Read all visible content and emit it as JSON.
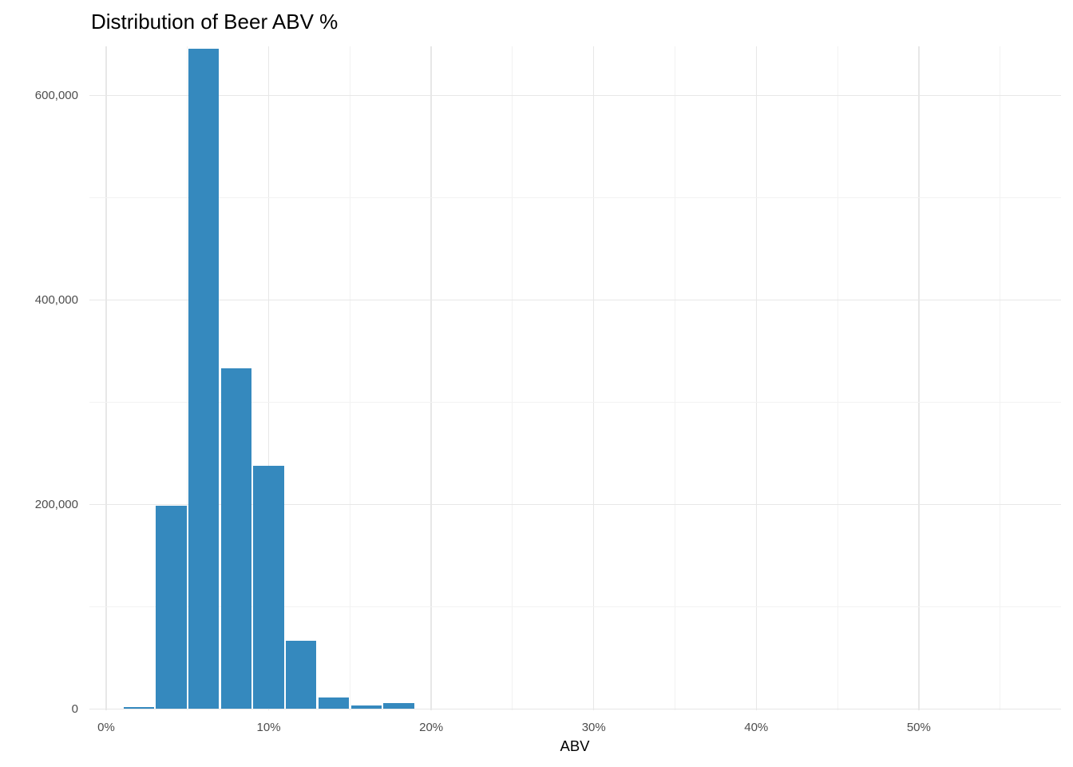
{
  "chart_data": {
    "type": "bar",
    "subtype": "histogram",
    "title": "Distribution of Beer ABV %",
    "xlabel": "ABV",
    "ylabel": "",
    "legend": "none",
    "grid": true,
    "background": "#ffffff",
    "bar_color": "#3589be",
    "colors": {
      "grid_major": "#e7e7e7",
      "grid_minor": "#f2f2f2",
      "tick_label": "#4d4d4d",
      "title": "#000000",
      "axis_title": "#000000"
    },
    "x_axis": {
      "tick_labels": [
        "0%",
        "10%",
        "20%",
        "30%",
        "40%",
        "50%"
      ],
      "tick_values": [
        0,
        10,
        20,
        30,
        40,
        50
      ],
      "minor_values": [
        5,
        15,
        25,
        35,
        45,
        55
      ],
      "range_pct": [
        -1,
        58.8
      ]
    },
    "y_axis": {
      "tick_labels": [
        "0",
        "200,000",
        "400,000",
        "600,000"
      ],
      "tick_values": [
        0,
        200000,
        400000,
        600000
      ],
      "minor_values": [
        100000,
        300000,
        500000
      ],
      "range": [
        0,
        648000
      ]
    },
    "bin_width_pct": 2,
    "bins": [
      {
        "center_pct": 2,
        "count": 2000
      },
      {
        "center_pct": 4,
        "count": 199000
      },
      {
        "center_pct": 6,
        "count": 646000
      },
      {
        "center_pct": 8,
        "count": 333000
      },
      {
        "center_pct": 10,
        "count": 238000
      },
      {
        "center_pct": 12,
        "count": 67000
      },
      {
        "center_pct": 14,
        "count": 11000
      },
      {
        "center_pct": 16,
        "count": 3500
      },
      {
        "center_pct": 18,
        "count": 5500
      }
    ]
  }
}
